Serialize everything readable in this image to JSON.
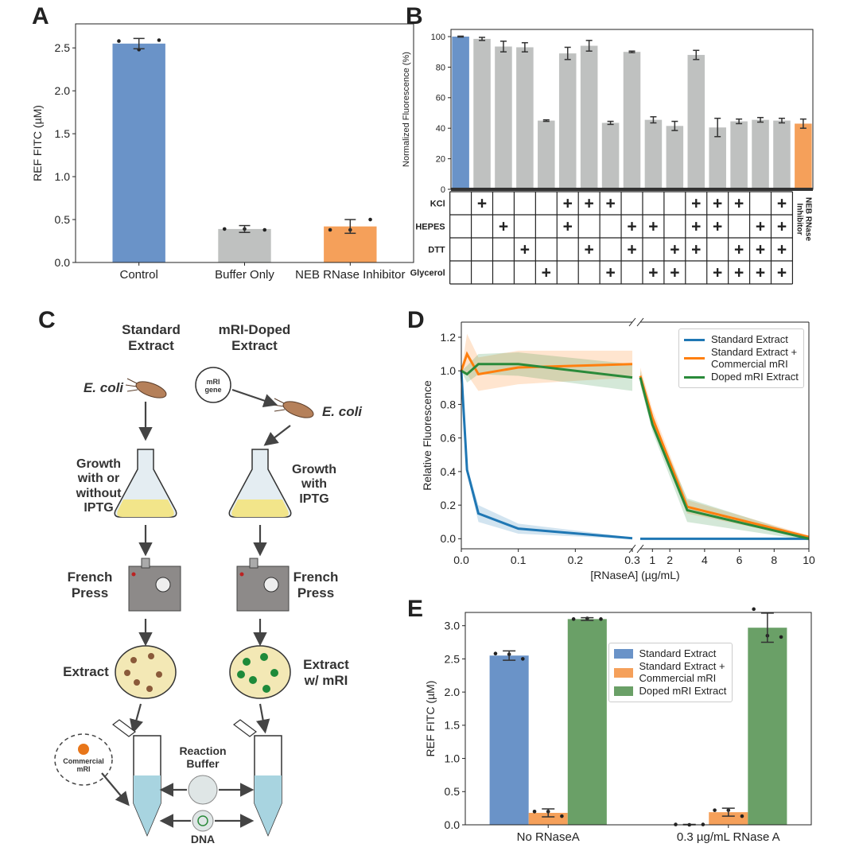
{
  "chart_data": [
    {
      "type": "bar",
      "label": "A",
      "ylabel": "REF FITC (µM)",
      "categories": [
        "Control",
        "Buffer Only",
        "NEB RNase Inhibitor"
      ],
      "values": [
        2.55,
        0.39,
        0.42
      ],
      "errors": [
        0.06,
        0.04,
        0.08
      ],
      "points": [
        [
          2.58,
          2.48,
          2.59
        ],
        [
          0.39,
          0.39,
          0.38
        ],
        [
          0.38,
          0.38,
          0.5
        ]
      ],
      "colors": [
        "#6a93c8",
        "#bfc1c0",
        "#f5a05a"
      ],
      "ylim": [
        0,
        2.78
      ],
      "yticks": [
        {
          "value": 0,
          "label": "0.0"
        },
        0.5,
        {
          "value": 1,
          "label": "1.0"
        },
        1.5,
        {
          "value": 2,
          "label": "2.0"
        },
        2.5
      ]
    },
    {
      "type": "bar",
      "label": "B",
      "ylabel": "Normalized Fluorescence (%)",
      "values": [
        100,
        98.5,
        93.5,
        93,
        45,
        89,
        94,
        43.5,
        90,
        45.5,
        41.5,
        88,
        40.5,
        44.5,
        45.5,
        45,
        43
      ],
      "errors": [
        0.3,
        1,
        3.5,
        3,
        0.5,
        4,
        3.5,
        1,
        0.5,
        2,
        3,
        3,
        6,
        1.5,
        1.5,
        1.5,
        3
      ],
      "colors": [
        "#6a93c8",
        "#bfc1c0",
        "#bfc1c0",
        "#bfc1c0",
        "#bfc1c0",
        "#bfc1c0",
        "#bfc1c0",
        "#bfc1c0",
        "#bfc1c0",
        "#bfc1c0",
        "#bfc1c0",
        "#bfc1c0",
        "#bfc1c0",
        "#bfc1c0",
        "#bfc1c0",
        "#bfc1c0",
        "#f5a05a"
      ],
      "ylim": [
        0,
        104.7
      ],
      "yticks": [
        0,
        20,
        40,
        60,
        80,
        100
      ],
      "table": {
        "rows": [
          {
            "label": "KCl",
            "cells": [
              null,
              "+",
              null,
              null,
              null,
              "+",
              "+",
              "+",
              null,
              null,
              null,
              "+",
              "+",
              "+",
              null,
              "+"
            ]
          },
          {
            "label": "HEPES",
            "cells": [
              null,
              null,
              "+",
              null,
              null,
              "+",
              null,
              null,
              "+",
              "+",
              null,
              "+",
              "+",
              null,
              "+",
              "+"
            ]
          },
          {
            "label": "DTT",
            "cells": [
              null,
              null,
              null,
              "+",
              null,
              null,
              "+",
              null,
              "+",
              null,
              "+",
              "+",
              null,
              "+",
              "+",
              "+"
            ]
          },
          {
            "label": "Glycerol",
            "cells": [
              null,
              null,
              null,
              null,
              "+",
              null,
              null,
              "+",
              null,
              "+",
              "+",
              null,
              "+",
              "+",
              "+",
              "+"
            ]
          }
        ]
      },
      "column_label": "NEB RNase Inhibitor"
    },
    {
      "type": "line",
      "label": "D",
      "ylabel": "Relative Fluorescence",
      "xlabel": "[RNaseA] (µg/mL)",
      "x": [
        0,
        0.01,
        0.03,
        0.1,
        0.3
      ],
      "x_right": [
        0.3,
        1,
        3,
        10
      ],
      "xlim": [
        0,
        0.3
      ],
      "xlim_right": [
        0.3,
        10
      ],
      "xticks": [
        {
          "value": 0,
          "label": "0.0"
        },
        0.1,
        0.2,
        0.3
      ],
      "xticks_right": [
        1,
        2,
        4,
        6,
        8,
        10
      ],
      "ylim": [
        -0.06,
        1.29
      ],
      "yticks": [
        {
          "value": 0,
          "label": "0.0"
        },
        0.2,
        0.4,
        0.6,
        0.8,
        {
          "value": 1,
          "label": "1.0"
        },
        1.2
      ],
      "legend": "upper right",
      "series": [
        {
          "name": "Standard Extract",
          "color": "#1f77b4",
          "values": [
            1.0,
            0.41,
            0.15,
            0.06,
            0.003
          ],
          "spread": [
            0,
            0.02,
            0.05,
            0.03,
            0.005
          ],
          "values_right": [
            0,
            0,
            0,
            0
          ],
          "spread_right": [
            0,
            0,
            0,
            0
          ]
        },
        {
          "name": "Standard Extract + Commercial mRI",
          "color": "#ff7f0e",
          "values": [
            1.0,
            1.1,
            0.98,
            1.02,
            1.04
          ],
          "spread": [
            0,
            0.12,
            0.1,
            0.1,
            0.08
          ],
          "values_right": [
            0.97,
            0.72,
            0.19,
            0.01
          ],
          "spread_right": [
            0.05,
            0.05,
            0.04,
            0.01
          ]
        },
        {
          "name": "Doped mRI Extract",
          "color": "#2a8a3a",
          "values": [
            1.0,
            0.98,
            1.04,
            1.04,
            0.96
          ],
          "spread": [
            0,
            0.05,
            0.06,
            0.07,
            0.08
          ],
          "values_right": [
            0.96,
            0.68,
            0.17,
            0.0
          ],
          "spread_right": [
            0.04,
            0.04,
            0.07,
            0.01
          ]
        }
      ]
    },
    {
      "type": "bar",
      "label": "E",
      "ylabel": "REF FITC (µM)",
      "categories": [
        "No RNaseA",
        "0.3 µg/mL RNase A"
      ],
      "ylim": [
        0,
        3.2
      ],
      "yticks": [
        {
          "value": 0,
          "label": "0.0"
        },
        0.5,
        {
          "value": 1,
          "label": "1.0"
        },
        1.5,
        {
          "value": 2,
          "label": "2.0"
        },
        2.5,
        {
          "value": 3,
          "label": "3.0"
        }
      ],
      "legend": "upper center",
      "series": [
        {
          "name": "Standard Extract",
          "color": "#6a93c8",
          "values": [
            2.55,
            0.003
          ],
          "errors": [
            0.07,
            0.003
          ],
          "points": [
            [
              2.58,
              2.57,
              2.5
            ],
            [
              0.005,
              0,
              0.005
            ]
          ]
        },
        {
          "name": "Standard Extract + Commercial mRI",
          "color": "#f5a05a",
          "values": [
            0.18,
            0.19
          ],
          "errors": [
            0.06,
            0.06
          ],
          "points": [
            [
              0.2,
              0.2,
              0.13
            ],
            [
              0.22,
              0.22,
              0.13
            ]
          ]
        },
        {
          "name": "Doped mRI Extract",
          "color": "#6aa067",
          "values": [
            3.1,
            2.97
          ],
          "errors": [
            0.02,
            0.22
          ],
          "points": [
            [
              3.1,
              3.11,
              3.1
            ],
            [
              3.25,
              2.85,
              2.83
            ]
          ]
        }
      ]
    }
  ],
  "diagram": {
    "label": "C",
    "left_title": "Standard Extract",
    "right_title": "mRI-Doped Extract",
    "left_strain": "E. coli",
    "right_strain": "E. coli",
    "plasmid": "mRI gene",
    "left_growth": "Growth with or without IPTG",
    "right_growth": "Growth with IPTG",
    "left_press": "French Press",
    "right_press": "French Press",
    "left_extract": "Extract",
    "right_extract": "Extract w/ mRI",
    "commercial": "Commercial mRI",
    "buffer": "Reaction Buffer",
    "dna": "DNA"
  }
}
